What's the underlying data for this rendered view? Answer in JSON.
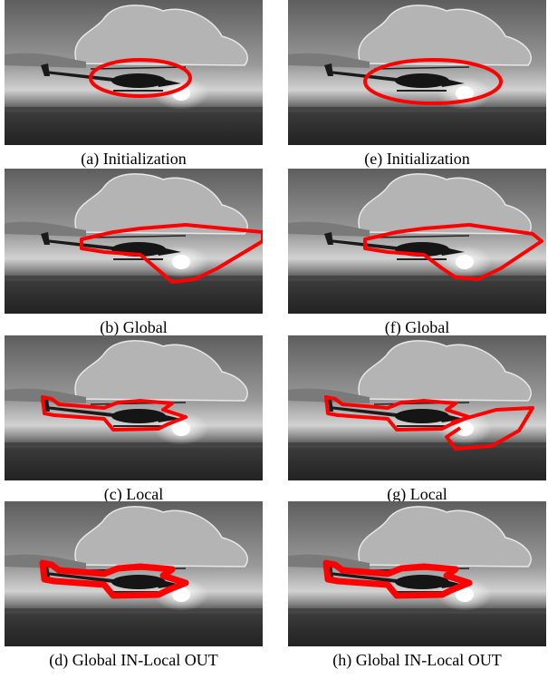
{
  "panels": [
    {
      "caption": "(a) Initialization"
    },
    {
      "caption": "(b) Global"
    },
    {
      "caption": "(c) Local"
    },
    {
      "caption": "(d) Global IN-Local OUT"
    },
    {
      "caption": "(e) Initialization"
    },
    {
      "caption": "(f) Global"
    },
    {
      "caption": "(g) Local"
    },
    {
      "caption": "(h) Global IN-Local OUT"
    }
  ]
}
